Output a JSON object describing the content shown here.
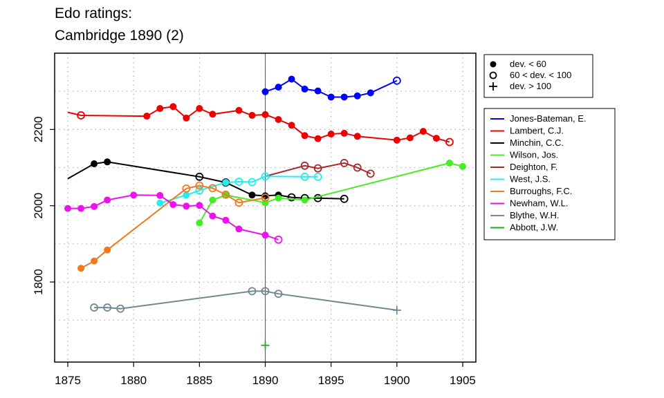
{
  "title_lines": [
    "Edo ratings:",
    "Cambridge 1890 (2)"
  ],
  "chart_data": {
    "type": "line",
    "title": "Edo ratings: Cambridge 1890 (2)",
    "xlabel": "",
    "ylabel": "",
    "xlim": [
      1874,
      1906
    ],
    "ylim": [
      1590,
      2400
    ],
    "x_ticks": [
      1875,
      1880,
      1885,
      1890,
      1895,
      1900,
      1905
    ],
    "y_ticks": [
      1800,
      2000,
      2200
    ],
    "x_grid": [
      1875,
      1880,
      1885,
      1890,
      1895,
      1900,
      1905
    ],
    "y_grid": [
      1700,
      1800,
      1900,
      2000,
      2100,
      2200,
      2300
    ],
    "grid": true,
    "reference_line_x": 1890,
    "marker_legend": {
      "position": "top-right",
      "entries": [
        {
          "marker": "filled",
          "label": "dev. < 60"
        },
        {
          "marker": "open",
          "label": "60 < dev. < 100"
        },
        {
          "marker": "plus",
          "label": "dev. > 100"
        }
      ]
    },
    "series_legend_position": "right",
    "series": [
      {
        "name": "Jones-Bateman, E.",
        "color": "#0000ff",
        "points": [
          {
            "x": 1890,
            "y": 2299,
            "m": "f"
          },
          {
            "x": 1891,
            "y": 2311,
            "m": "f"
          },
          {
            "x": 1892,
            "y": 2332,
            "m": "f"
          },
          {
            "x": 1893,
            "y": 2306,
            "m": "f"
          },
          {
            "x": 1894,
            "y": 2301,
            "m": "f"
          },
          {
            "x": 1895,
            "y": 2285,
            "m": "f"
          },
          {
            "x": 1896,
            "y": 2285,
            "m": "f"
          },
          {
            "x": 1897,
            "y": 2288,
            "m": "f"
          },
          {
            "x": 1898,
            "y": 2296,
            "m": "f"
          },
          {
            "x": 1900,
            "y": 2328,
            "m": "o"
          }
        ]
      },
      {
        "name": "Lambert, C.J.",
        "color": "#ee0000",
        "points": [
          {
            "x": 1875,
            "y": 2245,
            "m": "n"
          },
          {
            "x": 1876,
            "y": 2237,
            "m": "o"
          },
          {
            "x": 1881,
            "y": 2235,
            "m": "f"
          },
          {
            "x": 1882,
            "y": 2255,
            "m": "f"
          },
          {
            "x": 1883,
            "y": 2260,
            "m": "f"
          },
          {
            "x": 1884,
            "y": 2230,
            "m": "f"
          },
          {
            "x": 1885,
            "y": 2255,
            "m": "f"
          },
          {
            "x": 1886,
            "y": 2240,
            "m": "f"
          },
          {
            "x": 1888,
            "y": 2250,
            "m": "f"
          },
          {
            "x": 1889,
            "y": 2237,
            "m": "f"
          },
          {
            "x": 1890,
            "y": 2239,
            "m": "f"
          },
          {
            "x": 1891,
            "y": 2226,
            "m": "f"
          },
          {
            "x": 1892,
            "y": 2211,
            "m": "f"
          },
          {
            "x": 1893,
            "y": 2184,
            "m": "f"
          },
          {
            "x": 1894,
            "y": 2176,
            "m": "f"
          },
          {
            "x": 1895,
            "y": 2188,
            "m": "f"
          },
          {
            "x": 1896,
            "y": 2190,
            "m": "f"
          },
          {
            "x": 1897,
            "y": 2182,
            "m": "f"
          },
          {
            "x": 1900,
            "y": 2172,
            "m": "f"
          },
          {
            "x": 1901,
            "y": 2178,
            "m": "f"
          },
          {
            "x": 1902,
            "y": 2195,
            "m": "f"
          },
          {
            "x": 1903,
            "y": 2177,
            "m": "f"
          },
          {
            "x": 1904,
            "y": 2167,
            "m": "o"
          }
        ]
      },
      {
        "name": "Minchin, C.C.",
        "color": "#000000",
        "points": [
          {
            "x": 1875,
            "y": 2071,
            "m": "n"
          },
          {
            "x": 1877,
            "y": 2110,
            "m": "f"
          },
          {
            "x": 1878,
            "y": 2115,
            "m": "f"
          },
          {
            "x": 1885,
            "y": 2076,
            "m": "o"
          },
          {
            "x": 1887,
            "y": 2061,
            "m": "o"
          },
          {
            "x": 1889,
            "y": 2028,
            "m": "f"
          },
          {
            "x": 1890,
            "y": 2026,
            "m": "f"
          },
          {
            "x": 1891,
            "y": 2028,
            "m": "f"
          },
          {
            "x": 1892,
            "y": 2022,
            "m": "o"
          },
          {
            "x": 1893,
            "y": 2020,
            "m": "o"
          },
          {
            "x": 1894,
            "y": 2020,
            "m": "o"
          },
          {
            "x": 1896,
            "y": 2018,
            "m": "o"
          }
        ]
      },
      {
        "name": "Wilson, Jos.",
        "color": "#44ee22",
        "points": [
          {
            "x": 1885,
            "y": 1955,
            "m": "f"
          },
          {
            "x": 1886,
            "y": 2015,
            "m": "f"
          },
          {
            "x": 1887,
            "y": 2028,
            "m": "f"
          },
          {
            "x": 1890,
            "y": 2008,
            "m": "f"
          },
          {
            "x": 1891,
            "y": 2020,
            "m": "f"
          },
          {
            "x": 1893,
            "y": 2015,
            "m": "f"
          },
          {
            "x": 1904,
            "y": 2112,
            "m": "f"
          },
          {
            "x": 1905,
            "y": 2103,
            "m": "f"
          }
        ]
      },
      {
        "name": "Deighton, F.",
        "color": "#a52a2a",
        "points": [
          {
            "x": 1890,
            "y": 2077,
            "m": "n"
          },
          {
            "x": 1893,
            "y": 2105,
            "m": "o"
          },
          {
            "x": 1894,
            "y": 2098,
            "m": "o"
          },
          {
            "x": 1896,
            "y": 2112,
            "m": "o"
          },
          {
            "x": 1897,
            "y": 2100,
            "m": "o"
          },
          {
            "x": 1898,
            "y": 2084,
            "m": "o"
          }
        ]
      },
      {
        "name": "West, J.S.",
        "color": "#22eeee",
        "points": [
          {
            "x": 1882,
            "y": 2007,
            "m": "f"
          },
          {
            "x": 1884,
            "y": 2028,
            "m": "f"
          },
          {
            "x": 1885,
            "y": 2040,
            "m": "o"
          },
          {
            "x": 1887,
            "y": 2061,
            "m": "f"
          },
          {
            "x": 1888,
            "y": 2063,
            "m": "o"
          },
          {
            "x": 1889,
            "y": 2062,
            "m": "o"
          },
          {
            "x": 1890,
            "y": 2077,
            "m": "o"
          },
          {
            "x": 1893,
            "y": 2076,
            "m": "o"
          },
          {
            "x": 1894,
            "y": 2076,
            "m": "o"
          }
        ]
      },
      {
        "name": "Burroughs, F.C.",
        "color": "#f07820",
        "points": [
          {
            "x": 1876,
            "y": 1836,
            "m": "f"
          },
          {
            "x": 1877,
            "y": 1855,
            "m": "f"
          },
          {
            "x": 1878,
            "y": 1884,
            "m": "f"
          },
          {
            "x": 1884,
            "y": 2045,
            "m": "o"
          },
          {
            "x": 1885,
            "y": 2053,
            "m": "o"
          },
          {
            "x": 1886,
            "y": 2046,
            "m": "o"
          },
          {
            "x": 1887,
            "y": 2029,
            "m": "o"
          },
          {
            "x": 1888,
            "y": 2008,
            "m": "o"
          },
          {
            "x": 1890,
            "y": 2021,
            "m": "o"
          }
        ]
      },
      {
        "name": "Newham, W.L.",
        "color": "#ee11ee",
        "points": [
          {
            "x": 1875,
            "y": 1993,
            "m": "f"
          },
          {
            "x": 1876,
            "y": 1993,
            "m": "f"
          },
          {
            "x": 1877,
            "y": 1998,
            "m": "f"
          },
          {
            "x": 1878,
            "y": 2015,
            "m": "f"
          },
          {
            "x": 1880,
            "y": 2028,
            "m": "f"
          },
          {
            "x": 1882,
            "y": 2027,
            "m": "f"
          },
          {
            "x": 1883,
            "y": 2003,
            "m": "f"
          },
          {
            "x": 1884,
            "y": 1999,
            "m": "f"
          },
          {
            "x": 1885,
            "y": 2001,
            "m": "f"
          },
          {
            "x": 1886,
            "y": 1973,
            "m": "f"
          },
          {
            "x": 1887,
            "y": 1962,
            "m": "f"
          },
          {
            "x": 1888,
            "y": 1939,
            "m": "f"
          },
          {
            "x": 1890,
            "y": 1923,
            "m": "f"
          },
          {
            "x": 1891,
            "y": 1911,
            "m": "o"
          }
        ]
      },
      {
        "name": "Blythe, W.H.",
        "color": "#708890",
        "points": [
          {
            "x": 1877,
            "y": 1733,
            "m": "o"
          },
          {
            "x": 1878,
            "y": 1733,
            "m": "o"
          },
          {
            "x": 1879,
            "y": 1730,
            "m": "o"
          },
          {
            "x": 1889,
            "y": 1776,
            "m": "o"
          },
          {
            "x": 1890,
            "y": 1776,
            "m": "o"
          },
          {
            "x": 1891,
            "y": 1769,
            "m": "o"
          },
          {
            "x": 1900,
            "y": 1726,
            "m": "p"
          }
        ]
      },
      {
        "name": "Abbott, J.W.",
        "color": "#22aa22",
        "points": [
          {
            "x": 1890,
            "y": 1634,
            "m": "p"
          }
        ]
      }
    ]
  }
}
